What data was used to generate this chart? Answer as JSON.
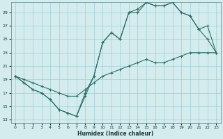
{
  "xlabel": "Humidex (Indice chaleur)",
  "bg_color": "#d4ecee",
  "grid_color": "#9ecfd4",
  "line_color": "#2a7068",
  "xlim": [
    -0.5,
    23.5
  ],
  "ylim": [
    12.5,
    30.5
  ],
  "yticks": [
    13,
    15,
    17,
    19,
    21,
    23,
    25,
    27,
    29
  ],
  "xticks": [
    0,
    1,
    2,
    3,
    4,
    5,
    6,
    7,
    8,
    9,
    10,
    11,
    12,
    13,
    14,
    15,
    16,
    17,
    18,
    19,
    20,
    21,
    22,
    23
  ],
  "line1_x": [
    0,
    1,
    2,
    3,
    4,
    5,
    6,
    7,
    8,
    9,
    10,
    11,
    12,
    13,
    14,
    15,
    16,
    17,
    18,
    19,
    20,
    21,
    22,
    23
  ],
  "line1_y": [
    19.5,
    18.5,
    17.5,
    17.0,
    16.0,
    14.5,
    14.0,
    13.5,
    16.5,
    19.5,
    24.5,
    26.0,
    25.0,
    29.0,
    29.5,
    30.5,
    30.0,
    30.0,
    30.5,
    29.0,
    28.5,
    26.5,
    25.0,
    23.0
  ],
  "line2_x": [
    0,
    1,
    2,
    3,
    4,
    5,
    6,
    7,
    8,
    9,
    10,
    11,
    12,
    13,
    14,
    15,
    16,
    17,
    18,
    19,
    20,
    21,
    22,
    23
  ],
  "line2_y": [
    19.5,
    18.5,
    17.5,
    17.0,
    16.0,
    14.5,
    14.0,
    13.5,
    17.0,
    19.5,
    24.5,
    26.0,
    25.0,
    29.0,
    29.0,
    30.5,
    30.0,
    30.0,
    30.5,
    29.0,
    28.5,
    26.5,
    27.0,
    23.0
  ],
  "line3_x": [
    0,
    1,
    2,
    3,
    4,
    5,
    6,
    7,
    8,
    9,
    10,
    11,
    12,
    13,
    14,
    15,
    16,
    17,
    18,
    19,
    20,
    21,
    22,
    23
  ],
  "line3_y": [
    19.5,
    19.0,
    18.5,
    18.0,
    17.5,
    17.0,
    16.5,
    16.5,
    17.5,
    18.5,
    19.5,
    20.0,
    20.5,
    21.0,
    21.5,
    22.0,
    21.5,
    21.5,
    22.0,
    22.5,
    23.0,
    23.0,
    23.0,
    23.0
  ]
}
